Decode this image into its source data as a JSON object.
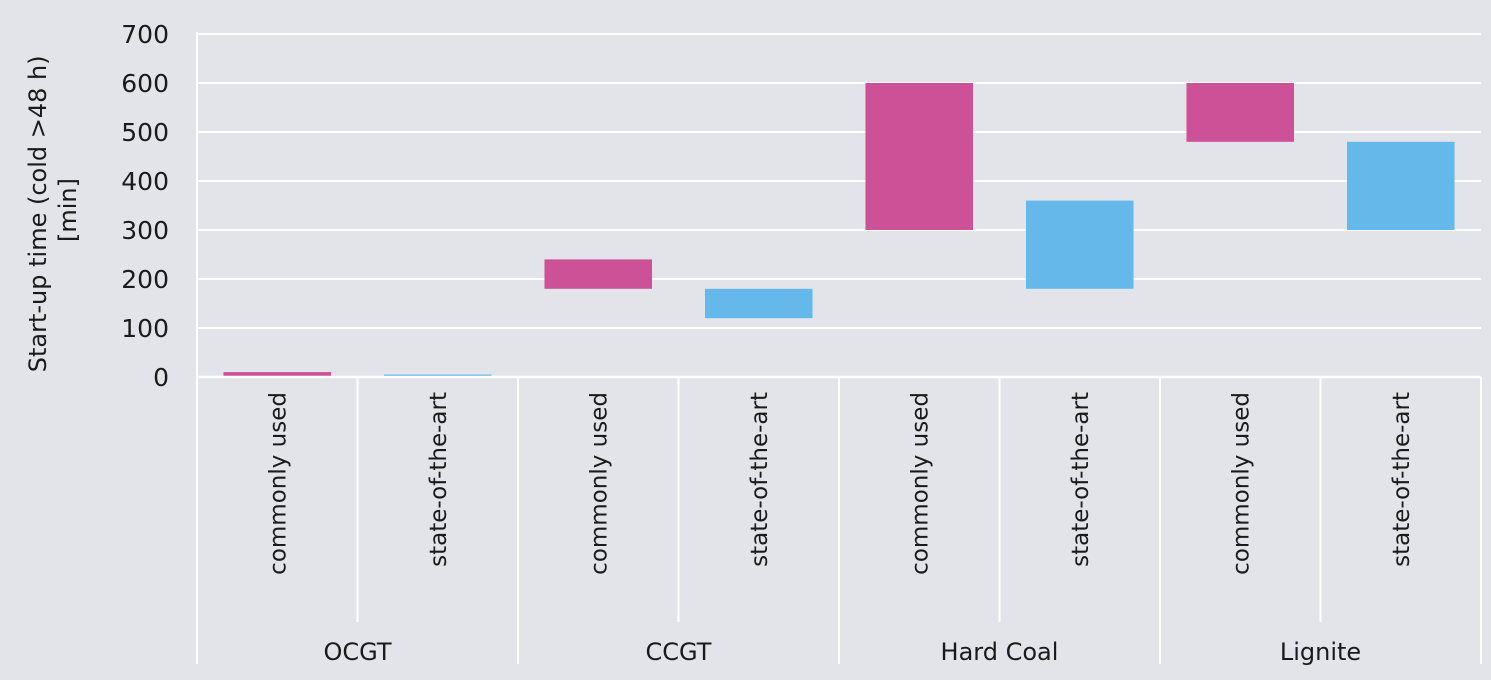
{
  "chart_data": {
    "type": "bar",
    "subtype": "floating-range",
    "ylabel_lines": [
      "Start-up time (cold >48 h)",
      "[min]"
    ],
    "ylim": [
      0,
      700
    ],
    "yticks": [
      0,
      100,
      200,
      300,
      400,
      500,
      600,
      700
    ],
    "grid": true,
    "groups": [
      "OCGT",
      "CCGT",
      "Hard Coal",
      "Lignite"
    ],
    "subcategories": [
      "commonly used",
      "state-of-the-art"
    ],
    "colors": {
      "commonly used": "#cc5197",
      "state-of-the-art": "#64b9ea"
    },
    "bars": [
      {
        "group": "OCGT",
        "category": "commonly used",
        "low": 0,
        "high": 10
      },
      {
        "group": "OCGT",
        "category": "state-of-the-art",
        "low": 0,
        "high": 5
      },
      {
        "group": "CCGT",
        "category": "commonly used",
        "low": 180,
        "high": 240
      },
      {
        "group": "CCGT",
        "category": "state-of-the-art",
        "low": 120,
        "high": 180
      },
      {
        "group": "Hard Coal",
        "category": "commonly used",
        "low": 300,
        "high": 600
      },
      {
        "group": "Hard Coal",
        "category": "state-of-the-art",
        "low": 180,
        "high": 360
      },
      {
        "group": "Lignite",
        "category": "commonly used",
        "low": 480,
        "high": 600
      },
      {
        "group": "Lignite",
        "category": "state-of-the-art",
        "low": 300,
        "high": 480
      }
    ]
  }
}
